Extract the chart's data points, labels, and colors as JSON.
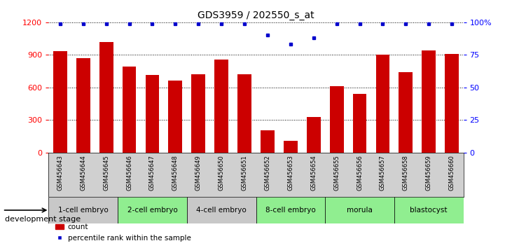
{
  "title": "GDS3959 / 202550_s_at",
  "samples": [
    "GSM456643",
    "GSM456644",
    "GSM456645",
    "GSM456646",
    "GSM456647",
    "GSM456648",
    "GSM456649",
    "GSM456650",
    "GSM456651",
    "GSM456652",
    "GSM456653",
    "GSM456654",
    "GSM456655",
    "GSM456656",
    "GSM456657",
    "GSM456658",
    "GSM456659",
    "GSM456660"
  ],
  "bar_values": [
    935,
    870,
    1020,
    790,
    715,
    665,
    720,
    860,
    720,
    205,
    110,
    330,
    610,
    540,
    900,
    740,
    940,
    910
  ],
  "percentile_values": [
    99,
    99,
    99,
    99,
    99,
    99,
    99,
    99,
    99,
    90,
    83,
    88,
    99,
    99,
    99,
    99,
    99,
    99
  ],
  "ylim_left": [
    0,
    1200
  ],
  "ylim_right": [
    0,
    100
  ],
  "yticks_left": [
    0,
    300,
    600,
    900,
    1200
  ],
  "yticks_right": [
    0,
    25,
    50,
    75,
    100
  ],
  "bar_color": "#cc0000",
  "dot_color": "#0000cc",
  "stages": [
    {
      "label": "1-cell embryo",
      "start": 0,
      "end": 3
    },
    {
      "label": "2-cell embryo",
      "start": 3,
      "end": 6
    },
    {
      "label": "4-cell embryo",
      "start": 6,
      "end": 9
    },
    {
      "label": "8-cell embryo",
      "start": 9,
      "end": 12
    },
    {
      "label": "morula",
      "start": 12,
      "end": 15
    },
    {
      "label": "blastocyst",
      "start": 15,
      "end": 18
    }
  ],
  "stage_bar_colors": [
    "#c8c8c8",
    "#90EE90",
    "#c8c8c8",
    "#90EE90",
    "#90EE90",
    "#90EE90"
  ],
  "xtick_bg_color": "#d0d0d0",
  "legend_count_label": "count",
  "legend_pct_label": "percentile rank within the sample",
  "background_color": "#ffffff",
  "xlabel_label": "development stage"
}
